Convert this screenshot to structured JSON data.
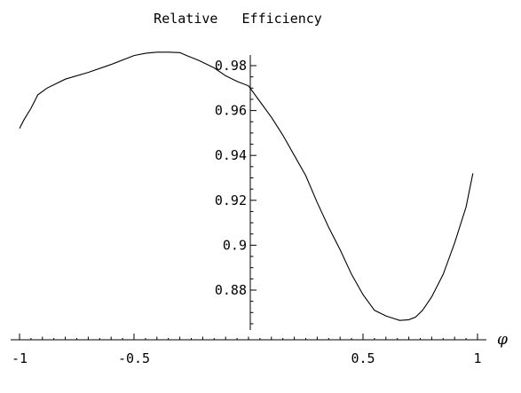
{
  "chart_data": {
    "type": "line",
    "title": "Relative   Efficiency",
    "xlabel": "φ",
    "ylabel": "",
    "xlim": [
      -1,
      1
    ],
    "ylim": [
      0.862,
      0.99
    ],
    "grid": false,
    "x_ticks": [
      -1,
      -0.5,
      0.5,
      1
    ],
    "x_tick_labels": [
      "-1",
      "-0.5",
      "0.5",
      "1"
    ],
    "y_ticks": [
      0.88,
      0.9,
      0.92,
      0.94,
      0.96,
      0.98
    ],
    "y_tick_labels": [
      "0.88",
      "0.9",
      "0.92",
      "0.94",
      "0.96",
      "0.98"
    ],
    "series": [
      {
        "x": [
          -1.0,
          -0.98,
          -0.95,
          -0.92,
          -0.88,
          -0.8,
          -0.7,
          -0.6,
          -0.5,
          -0.45,
          -0.4,
          -0.35,
          -0.3,
          -0.27,
          -0.22,
          -0.15,
          -0.1,
          -0.05,
          0.0,
          0.05,
          0.1,
          0.15,
          0.2,
          0.25,
          0.3,
          0.35,
          0.4,
          0.45,
          0.5,
          0.55,
          0.6,
          0.63,
          0.66,
          0.7,
          0.73,
          0.76,
          0.8,
          0.85,
          0.9,
          0.95,
          0.98
        ],
        "y": [
          0.952,
          0.956,
          0.961,
          0.967,
          0.97,
          0.974,
          0.977,
          0.9805,
          0.9845,
          0.9855,
          0.986,
          0.986,
          0.9858,
          0.9845,
          0.9825,
          0.979,
          0.9755,
          0.973,
          0.971,
          0.964,
          0.957,
          0.949,
          0.94,
          0.931,
          0.919,
          0.908,
          0.898,
          0.887,
          0.878,
          0.871,
          0.8685,
          0.8675,
          0.8665,
          0.8668,
          0.868,
          0.871,
          0.877,
          0.887,
          0.901,
          0.917,
          0.932
        ]
      }
    ]
  }
}
